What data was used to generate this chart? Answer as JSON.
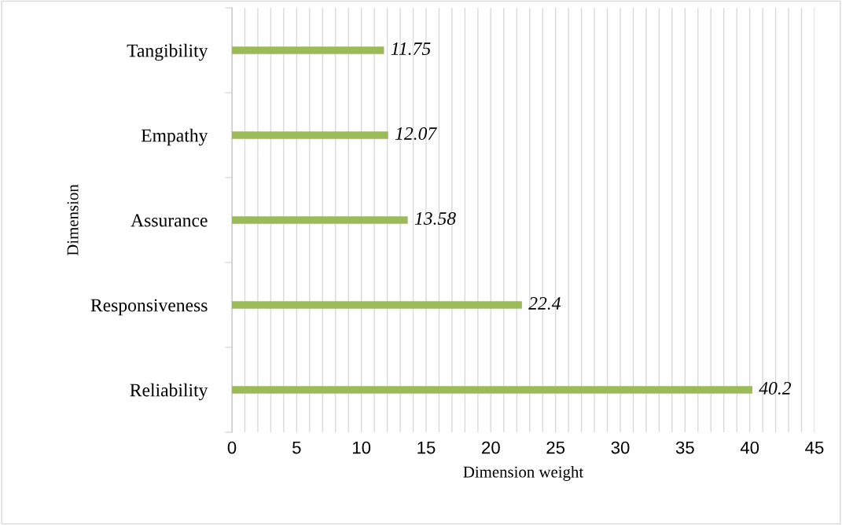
{
  "chart_data": {
    "type": "bar",
    "orientation": "horizontal",
    "xlabel": "Dimension weight",
    "ylabel": "Dimension",
    "categories": [
      "Tangibility",
      "Empathy",
      "Assurance",
      "Responsiveness",
      "Reliability"
    ],
    "values": [
      11.75,
      12.07,
      13.58,
      22.4,
      40.2
    ],
    "color": "#9bbb59",
    "xlim": [
      0,
      45
    ],
    "xticks": [
      0,
      5,
      10,
      15,
      20,
      25,
      30,
      35,
      40,
      45
    ],
    "grid": "x",
    "data_labels": true
  }
}
